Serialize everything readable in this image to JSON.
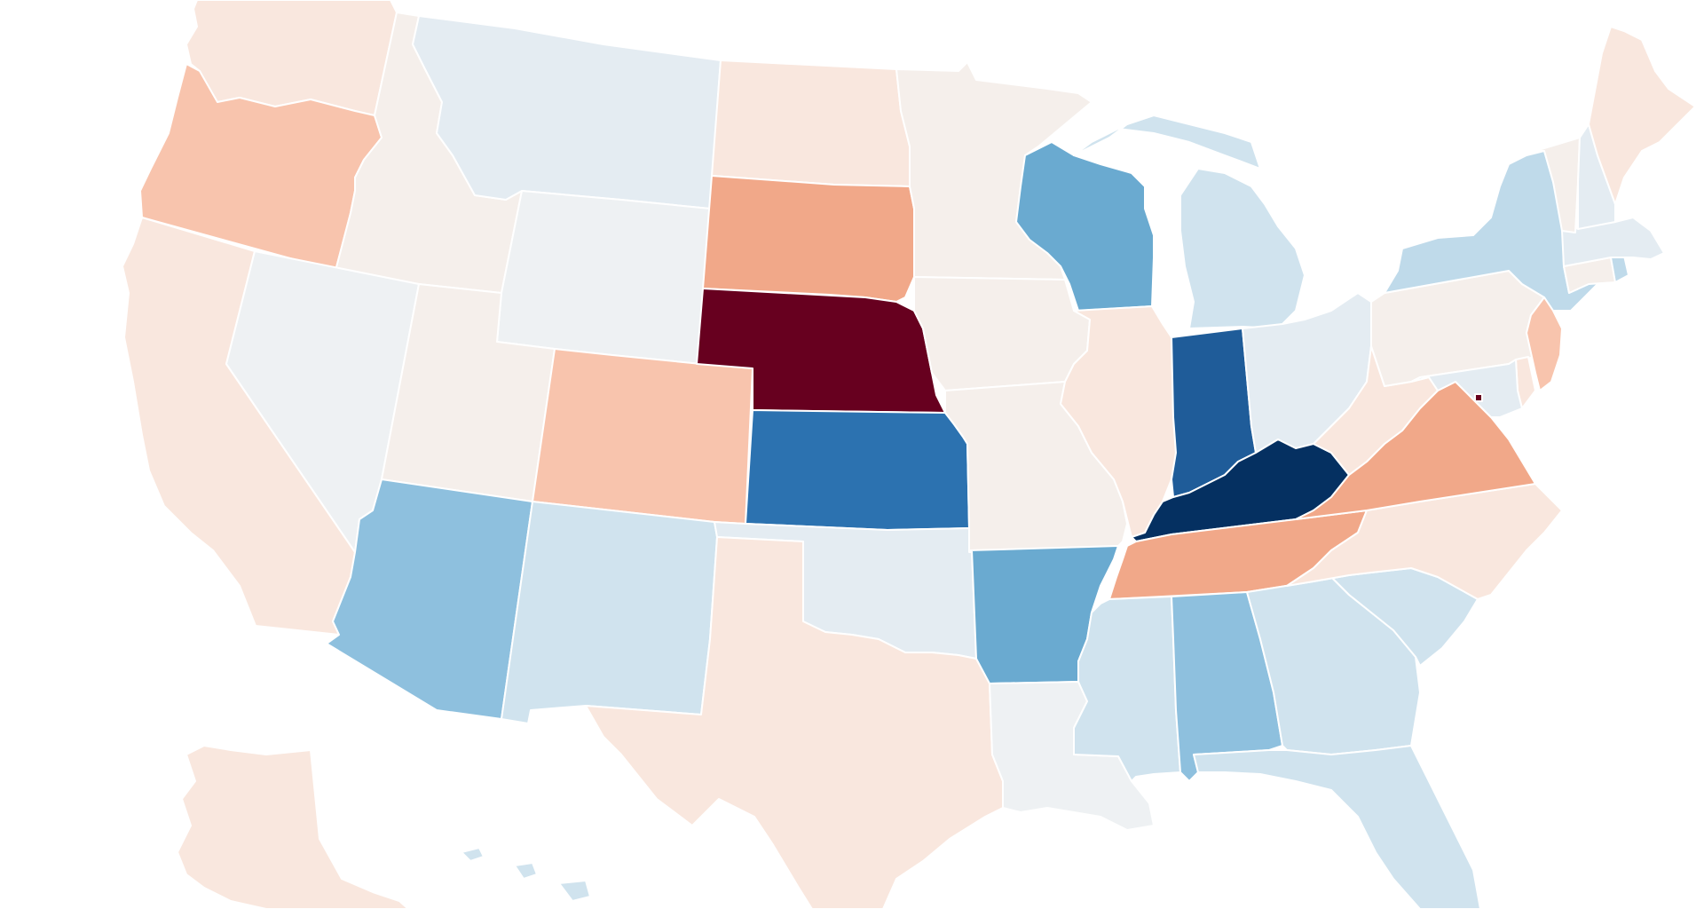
{
  "map": {
    "type": "us-states-choropleth",
    "colors": {
      "background": "#ffffff",
      "border": "#ffffff",
      "dark_red": "#67001f",
      "salmon": "#f1a889",
      "light_salmon": "#f8c4ad",
      "pale_peach": "#f9e7de",
      "neutral": "#f5efeb",
      "neutral_gray": "#eef1f3",
      "very_light_blue": "#e4ecf2",
      "light_blue": "#d0e3ee",
      "pale_blue": "#bfdaea",
      "sky_blue": "#8ec0de",
      "mid_blue": "#6aaad0",
      "strong_blue": "#2c72b0",
      "deep_blue": "#1f5c99",
      "navy": "#053061"
    },
    "states": [
      {
        "id": "WA",
        "shade": "pale_peach"
      },
      {
        "id": "OR",
        "shade": "light_salmon"
      },
      {
        "id": "CA",
        "shade": "pale_peach"
      },
      {
        "id": "ID",
        "shade": "neutral"
      },
      {
        "id": "NV",
        "shade": "neutral_gray"
      },
      {
        "id": "MT",
        "shade": "very_light_blue"
      },
      {
        "id": "WY",
        "shade": "neutral_gray"
      },
      {
        "id": "UT",
        "shade": "neutral"
      },
      {
        "id": "AZ",
        "shade": "sky_blue"
      },
      {
        "id": "CO",
        "shade": "light_salmon"
      },
      {
        "id": "NM",
        "shade": "light_blue"
      },
      {
        "id": "ND",
        "shade": "pale_peach"
      },
      {
        "id": "SD",
        "shade": "salmon"
      },
      {
        "id": "NE",
        "shade": "dark_red"
      },
      {
        "id": "KS",
        "shade": "strong_blue"
      },
      {
        "id": "OK",
        "shade": "very_light_blue"
      },
      {
        "id": "TX",
        "shade": "pale_peach"
      },
      {
        "id": "MN",
        "shade": "neutral"
      },
      {
        "id": "IA",
        "shade": "neutral"
      },
      {
        "id": "MO",
        "shade": "neutral"
      },
      {
        "id": "AR",
        "shade": "mid_blue"
      },
      {
        "id": "LA",
        "shade": "neutral_gray"
      },
      {
        "id": "WI",
        "shade": "mid_blue"
      },
      {
        "id": "IL",
        "shade": "pale_peach"
      },
      {
        "id": "MI",
        "shade": "light_blue"
      },
      {
        "id": "IN",
        "shade": "deep_blue"
      },
      {
        "id": "OH",
        "shade": "very_light_blue"
      },
      {
        "id": "KY",
        "shade": "navy"
      },
      {
        "id": "TN",
        "shade": "salmon"
      },
      {
        "id": "MS",
        "shade": "light_blue"
      },
      {
        "id": "AL",
        "shade": "sky_blue"
      },
      {
        "id": "GA",
        "shade": "light_blue"
      },
      {
        "id": "FL",
        "shade": "light_blue"
      },
      {
        "id": "SC",
        "shade": "light_blue"
      },
      {
        "id": "NC",
        "shade": "pale_peach"
      },
      {
        "id": "VA",
        "shade": "salmon"
      },
      {
        "id": "WV",
        "shade": "pale_peach"
      },
      {
        "id": "PA",
        "shade": "neutral"
      },
      {
        "id": "NY",
        "shade": "pale_blue"
      },
      {
        "id": "NJ",
        "shade": "light_salmon"
      },
      {
        "id": "DE",
        "shade": "pale_peach"
      },
      {
        "id": "MD",
        "shade": "very_light_blue"
      },
      {
        "id": "DC",
        "shade": "dark_red"
      },
      {
        "id": "CT",
        "shade": "neutral"
      },
      {
        "id": "RI",
        "shade": "pale_blue"
      },
      {
        "id": "MA",
        "shade": "very_light_blue"
      },
      {
        "id": "VT",
        "shade": "neutral"
      },
      {
        "id": "NH",
        "shade": "very_light_blue"
      },
      {
        "id": "ME",
        "shade": "pale_peach"
      },
      {
        "id": "AK",
        "shade": "pale_peach"
      },
      {
        "id": "HI",
        "shade": "light_blue"
      }
    ]
  }
}
